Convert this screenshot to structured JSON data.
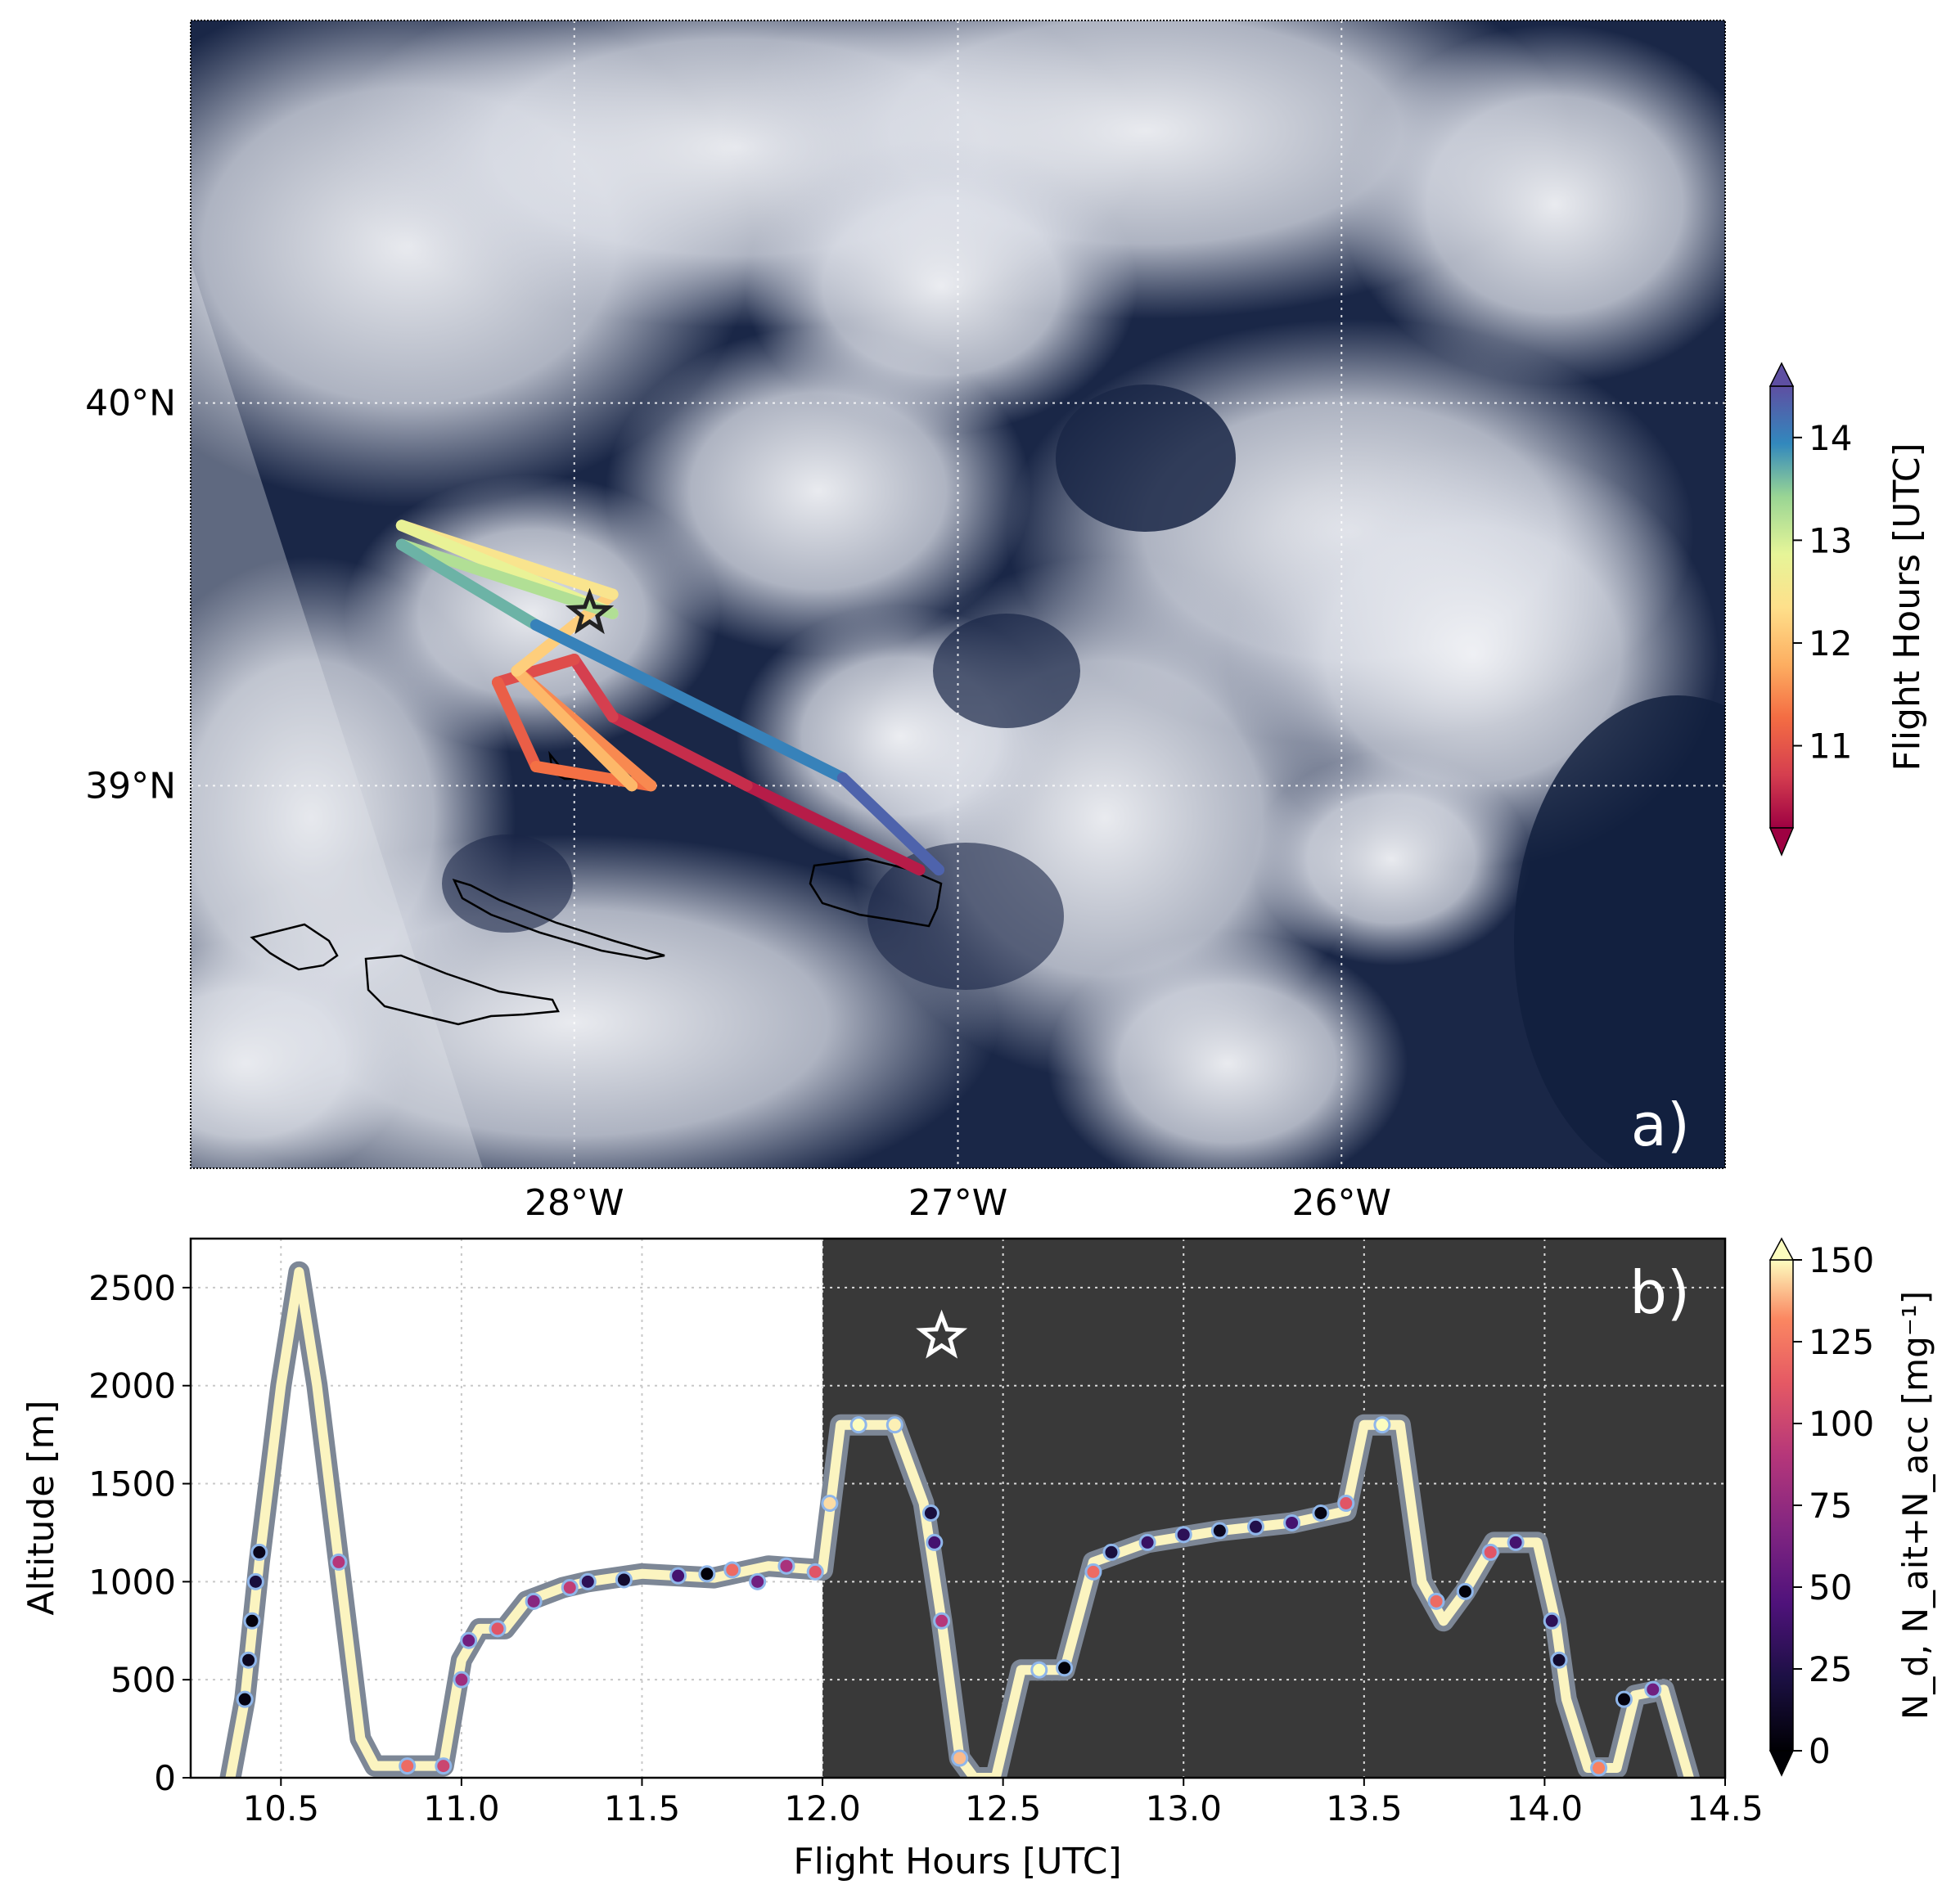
{
  "chart_data": [
    {
      "panel_label": "a)",
      "type": "map",
      "background": "satellite true-color cloud imagery",
      "lon_range": [
        -29.0,
        -25.0
      ],
      "lat_range": [
        38.0,
        41.0
      ],
      "x_ticks": [
        -28,
        -27,
        -26
      ],
      "x_tick_labels": [
        "28°W",
        "27°W",
        "26°W"
      ],
      "y_ticks": [
        39,
        40
      ],
      "y_tick_labels": [
        "39°N",
        "40°N"
      ],
      "grid": "dotted",
      "colorbar": {
        "label": "Flight Hours [UTC]",
        "range": [
          10.2,
          14.5
        ],
        "ticks": [
          11,
          12,
          13,
          14
        ],
        "tick_labels": [
          "11",
          "12",
          "13",
          "14"
        ],
        "colormap": "Spectral"
      },
      "flight_track": [
        {
          "lon": -27.1,
          "lat": 38.78,
          "hour": 10.35
        },
        {
          "lon": -27.55,
          "lat": 39.0,
          "hour": 10.5
        },
        {
          "lon": -27.9,
          "lat": 39.18,
          "hour": 10.65
        },
        {
          "lon": -28.0,
          "lat": 39.33,
          "hour": 10.8
        },
        {
          "lon": -28.2,
          "lat": 39.27,
          "hour": 11.0
        },
        {
          "lon": -28.1,
          "lat": 39.05,
          "hour": 11.2
        },
        {
          "lon": -27.8,
          "lat": 39.0,
          "hour": 11.4
        },
        {
          "lon": -28.15,
          "lat": 39.3,
          "hour": 11.6
        },
        {
          "lon": -27.85,
          "lat": 39.0,
          "hour": 11.8
        },
        {
          "lon": -28.15,
          "lat": 39.3,
          "hour": 12.0
        },
        {
          "lon": -27.9,
          "lat": 39.5,
          "hour": 12.3
        },
        {
          "lon": -28.45,
          "lat": 39.68,
          "hour": 12.6
        },
        {
          "lon": -27.9,
          "lat": 39.45,
          "hour": 13.0
        },
        {
          "lon": -28.45,
          "lat": 39.63,
          "hour": 13.5
        },
        {
          "lon": -28.1,
          "lat": 39.42,
          "hour": 13.8
        },
        {
          "lon": -27.3,
          "lat": 39.02,
          "hour": 14.2
        },
        {
          "lon": -27.05,
          "lat": 38.78,
          "hour": 14.4
        }
      ],
      "star": {
        "lon": -27.96,
        "lat": 39.45
      }
    },
    {
      "panel_label": "b)",
      "type": "scatter",
      "xlabel": "Flight Hours [UTC]",
      "ylabel": "Altitude [m]",
      "xlim": [
        10.25,
        14.5
      ],
      "ylim": [
        0,
        2750
      ],
      "x_ticks": [
        10.5,
        11.0,
        11.5,
        12.0,
        12.5,
        13.0,
        13.5,
        14.0,
        14.5
      ],
      "x_tick_labels": [
        "10.5",
        "11.0",
        "11.5",
        "12.0",
        "12.5",
        "13.0",
        "13.5",
        "14.0",
        "14.5"
      ],
      "y_ticks": [
        0,
        500,
        1000,
        1500,
        2000,
        2500
      ],
      "y_tick_labels": [
        "0",
        "500",
        "1000",
        "1500",
        "2000",
        "2500"
      ],
      "grid": "dotted",
      "shaded_region": {
        "from": 12.0,
        "to": 14.5,
        "color": "#393939"
      },
      "star": {
        "x": 12.33,
        "y": 2250
      },
      "colorbar": {
        "label": "N_d, N_ait+N_acc [mg⁻¹]",
        "range": [
          0,
          150
        ],
        "ticks": [
          0,
          25,
          50,
          75,
          100,
          125,
          150
        ],
        "tick_labels": [
          "0",
          "25",
          "50",
          "75",
          "100",
          "125",
          "150"
        ],
        "colormap": "magma"
      },
      "flight_profile": [
        {
          "x": 10.36,
          "y": 0
        },
        {
          "x": 10.4,
          "y": 400
        },
        {
          "x": 10.44,
          "y": 1100
        },
        {
          "x": 10.5,
          "y": 2000
        },
        {
          "x": 10.55,
          "y": 2580
        },
        {
          "x": 10.6,
          "y": 2000
        },
        {
          "x": 10.66,
          "y": 1100
        },
        {
          "x": 10.72,
          "y": 200
        },
        {
          "x": 10.76,
          "y": 60
        },
        {
          "x": 10.95,
          "y": 60
        },
        {
          "x": 11.0,
          "y": 600
        },
        {
          "x": 11.05,
          "y": 760
        },
        {
          "x": 11.12,
          "y": 760
        },
        {
          "x": 11.18,
          "y": 900
        },
        {
          "x": 11.28,
          "y": 970
        },
        {
          "x": 11.35,
          "y": 1000
        },
        {
          "x": 11.5,
          "y": 1040
        },
        {
          "x": 11.7,
          "y": 1020
        },
        {
          "x": 11.85,
          "y": 1080
        },
        {
          "x": 12.0,
          "y": 1060
        },
        {
          "x": 12.05,
          "y": 1800
        },
        {
          "x": 12.2,
          "y": 1800
        },
        {
          "x": 12.28,
          "y": 1400
        },
        {
          "x": 12.33,
          "y": 800
        },
        {
          "x": 12.38,
          "y": 100
        },
        {
          "x": 12.42,
          "y": 0
        },
        {
          "x": 12.48,
          "y": 0
        },
        {
          "x": 12.55,
          "y": 550
        },
        {
          "x": 12.67,
          "y": 550
        },
        {
          "x": 12.75,
          "y": 1100
        },
        {
          "x": 12.9,
          "y": 1200
        },
        {
          "x": 13.1,
          "y": 1260
        },
        {
          "x": 13.3,
          "y": 1300
        },
        {
          "x": 13.45,
          "y": 1360
        },
        {
          "x": 13.5,
          "y": 1800
        },
        {
          "x": 13.6,
          "y": 1800
        },
        {
          "x": 13.66,
          "y": 1000
        },
        {
          "x": 13.72,
          "y": 800
        },
        {
          "x": 13.78,
          "y": 950
        },
        {
          "x": 13.86,
          "y": 1200
        },
        {
          "x": 13.98,
          "y": 1200
        },
        {
          "x": 14.03,
          "y": 800
        },
        {
          "x": 14.06,
          "y": 400
        },
        {
          "x": 14.12,
          "y": 50
        },
        {
          "x": 14.2,
          "y": 50
        },
        {
          "x": 14.25,
          "y": 420
        },
        {
          "x": 14.33,
          "y": 450
        },
        {
          "x": 14.4,
          "y": 0
        }
      ],
      "measurement_points": [
        {
          "x": 10.4,
          "y": 400,
          "c": 5
        },
        {
          "x": 10.41,
          "y": 600,
          "c": 10
        },
        {
          "x": 10.42,
          "y": 800,
          "c": 3
        },
        {
          "x": 10.43,
          "y": 1000,
          "c": 20
        },
        {
          "x": 10.44,
          "y": 1150,
          "c": 8
        },
        {
          "x": 10.66,
          "y": 1100,
          "c": 90
        },
        {
          "x": 10.85,
          "y": 60,
          "c": 120
        },
        {
          "x": 10.95,
          "y": 60,
          "c": 100
        },
        {
          "x": 11.0,
          "y": 500,
          "c": 80
        },
        {
          "x": 11.02,
          "y": 700,
          "c": 60
        },
        {
          "x": 11.1,
          "y": 760,
          "c": 110
        },
        {
          "x": 11.2,
          "y": 900,
          "c": 70
        },
        {
          "x": 11.3,
          "y": 970,
          "c": 95
        },
        {
          "x": 11.35,
          "y": 1000,
          "c": 30
        },
        {
          "x": 11.45,
          "y": 1010,
          "c": 15
        },
        {
          "x": 11.6,
          "y": 1030,
          "c": 40
        },
        {
          "x": 11.68,
          "y": 1040,
          "c": 2
        },
        {
          "x": 11.75,
          "y": 1060,
          "c": 120
        },
        {
          "x": 11.82,
          "y": 1000,
          "c": 60
        },
        {
          "x": 11.9,
          "y": 1080,
          "c": 85
        },
        {
          "x": 11.98,
          "y": 1050,
          "c": 110
        },
        {
          "x": 12.02,
          "y": 1400,
          "c": 145
        },
        {
          "x": 12.1,
          "y": 1800,
          "c": 150
        },
        {
          "x": 12.2,
          "y": 1800,
          "c": 148
        },
        {
          "x": 12.3,
          "y": 1350,
          "c": 20
        },
        {
          "x": 12.31,
          "y": 1200,
          "c": 40
        },
        {
          "x": 12.33,
          "y": 800,
          "c": 90
        },
        {
          "x": 12.38,
          "y": 100,
          "c": 140
        },
        {
          "x": 12.6,
          "y": 550,
          "c": 150
        },
        {
          "x": 12.67,
          "y": 560,
          "c": 2
        },
        {
          "x": 12.75,
          "y": 1050,
          "c": 120
        },
        {
          "x": 12.8,
          "y": 1150,
          "c": 20
        },
        {
          "x": 12.9,
          "y": 1200,
          "c": 35
        },
        {
          "x": 13.0,
          "y": 1240,
          "c": 30
        },
        {
          "x": 13.1,
          "y": 1260,
          "c": 10
        },
        {
          "x": 13.2,
          "y": 1280,
          "c": 25
        },
        {
          "x": 13.3,
          "y": 1300,
          "c": 40
        },
        {
          "x": 13.38,
          "y": 1350,
          "c": 5
        },
        {
          "x": 13.45,
          "y": 1400,
          "c": 110
        },
        {
          "x": 13.55,
          "y": 1800,
          "c": 150
        },
        {
          "x": 13.7,
          "y": 900,
          "c": 120
        },
        {
          "x": 13.78,
          "y": 950,
          "c": 2
        },
        {
          "x": 13.85,
          "y": 1150,
          "c": 110
        },
        {
          "x": 13.92,
          "y": 1200,
          "c": 40
        },
        {
          "x": 14.02,
          "y": 800,
          "c": 30
        },
        {
          "x": 14.04,
          "y": 600,
          "c": 15
        },
        {
          "x": 14.15,
          "y": 50,
          "c": 130
        },
        {
          "x": 14.22,
          "y": 400,
          "c": 3
        },
        {
          "x": 14.3,
          "y": 450,
          "c": 60
        }
      ]
    }
  ]
}
